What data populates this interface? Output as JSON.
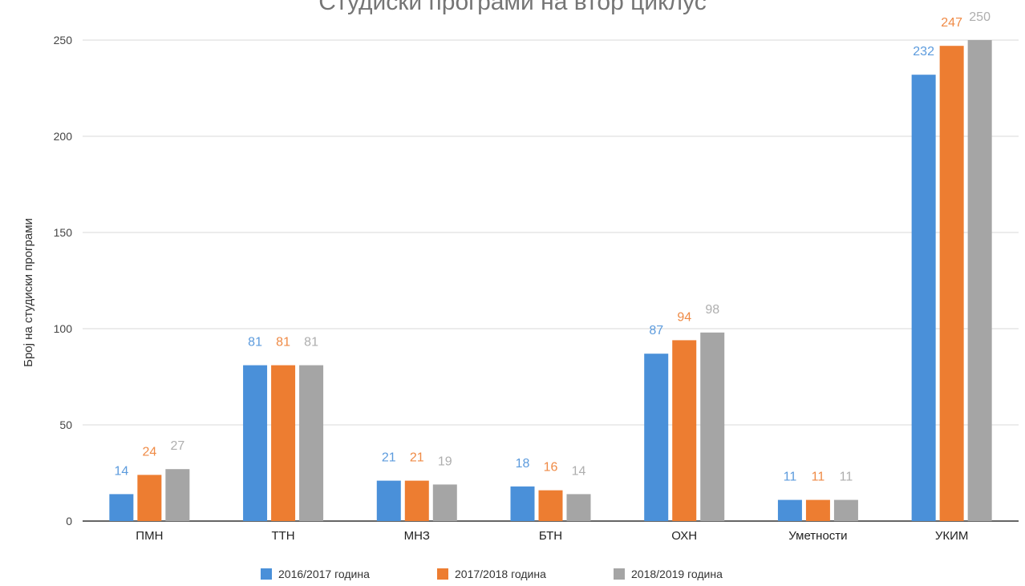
{
  "chart_data": {
    "type": "bar",
    "title": "Студиски програми на втор циклус",
    "xlabel": "",
    "ylabel": "Број на студиски програми",
    "ylim": [
      0,
      250
    ],
    "yticks": [
      0,
      50,
      100,
      150,
      200,
      250
    ],
    "categories": [
      "ПМН",
      "ТТН",
      "МНЗ",
      "БТН",
      "ОХН",
      "Уметности",
      "УКИМ"
    ],
    "series": [
      {
        "name": "2016/2017 година",
        "color": "#4a90d9",
        "values": [
          14,
          81,
          21,
          18,
          87,
          11,
          232
        ]
      },
      {
        "name": "2017/2018 година",
        "color": "#ed7d31",
        "values": [
          24,
          81,
          21,
          16,
          94,
          11,
          247
        ]
      },
      {
        "name": "2018/2019 година",
        "color": "#a5a5a5",
        "values": [
          27,
          81,
          19,
          14,
          98,
          11,
          250
        ]
      }
    ],
    "grid": true,
    "legend": "bottom"
  }
}
